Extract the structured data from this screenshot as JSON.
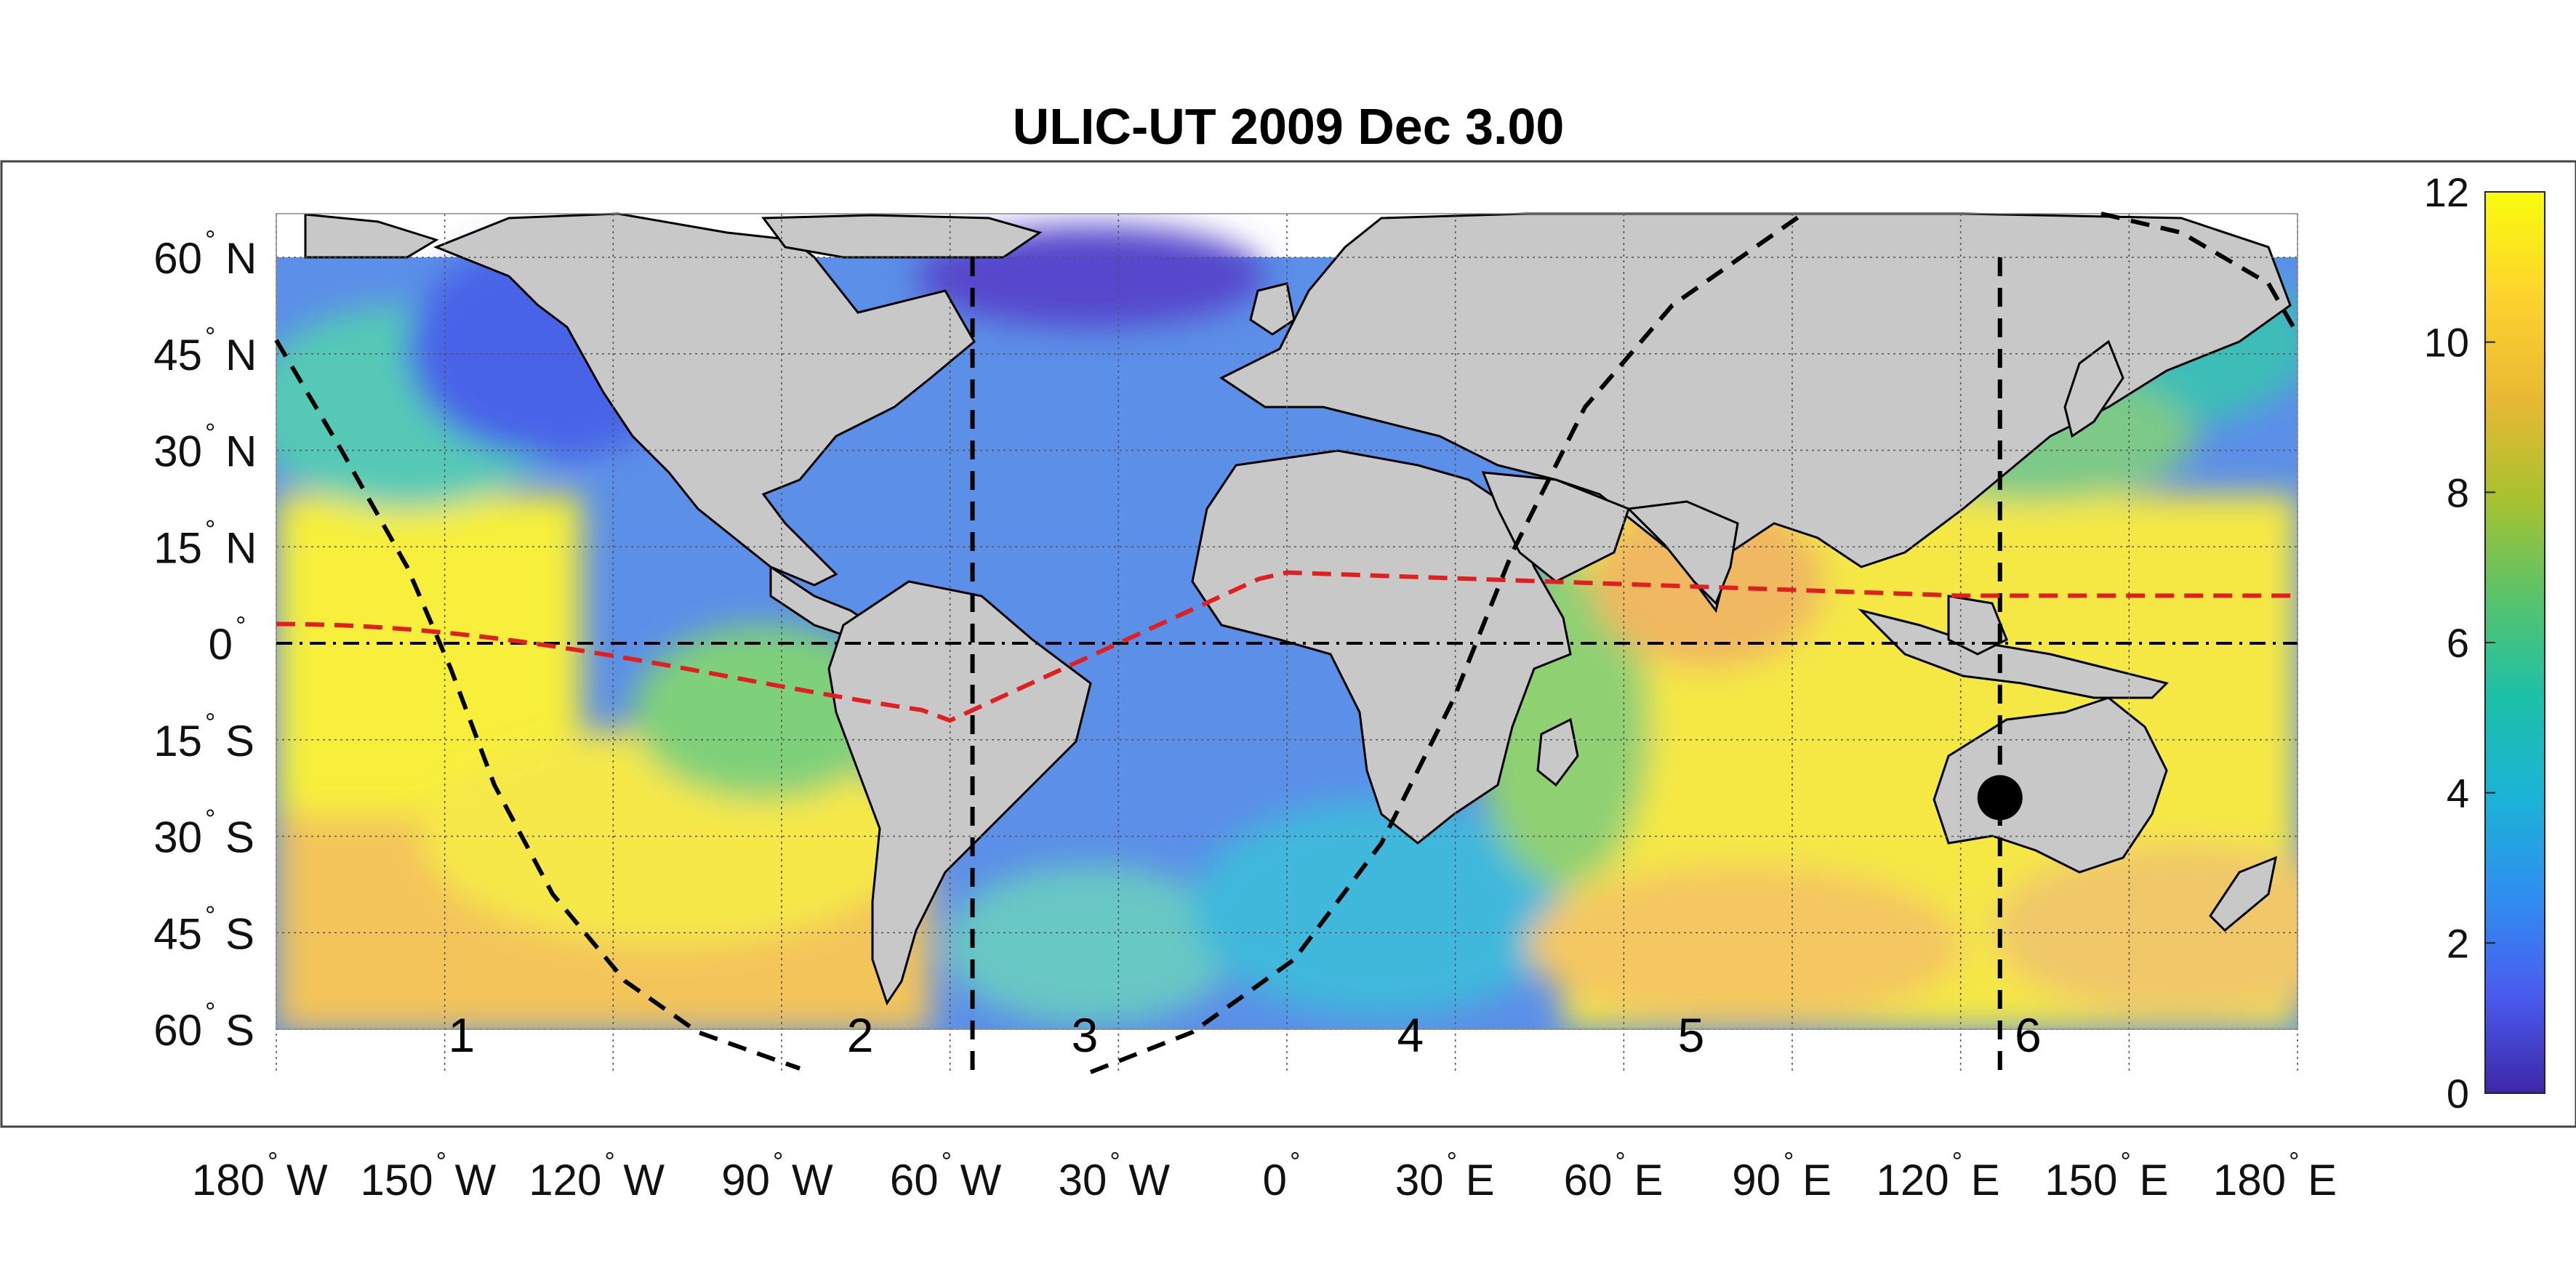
{
  "title": "ULIC-UT 2009 Dec  3.00",
  "degree_symbol": "°",
  "lat_labels": [
    {
      "value": 60,
      "num": "60",
      "hemi": "N"
    },
    {
      "value": 45,
      "num": "45",
      "hemi": "N"
    },
    {
      "value": 30,
      "num": "30",
      "hemi": "N"
    },
    {
      "value": 15,
      "num": "15",
      "hemi": "N"
    },
    {
      "value": 0,
      "num": "0",
      "hemi": ""
    },
    {
      "value": -15,
      "num": "15",
      "hemi": "S"
    },
    {
      "value": -30,
      "num": "30",
      "hemi": "S"
    },
    {
      "value": -45,
      "num": "45",
      "hemi": "S"
    },
    {
      "value": -60,
      "num": "60",
      "hemi": "S"
    }
  ],
  "lon_labels": [
    {
      "value": -180,
      "num": "180",
      "hemi": "W"
    },
    {
      "value": -150,
      "num": "150",
      "hemi": "W"
    },
    {
      "value": -120,
      "num": "120",
      "hemi": "W"
    },
    {
      "value": -90,
      "num": "90",
      "hemi": "W"
    },
    {
      "value": -60,
      "num": "60",
      "hemi": "W"
    },
    {
      "value": -30,
      "num": "30",
      "hemi": "W"
    },
    {
      "value": 0,
      "num": "0",
      "hemi": ""
    },
    {
      "value": 30,
      "num": "30",
      "hemi": "E"
    },
    {
      "value": 60,
      "num": "60",
      "hemi": "E"
    },
    {
      "value": 90,
      "num": "90",
      "hemi": "E"
    },
    {
      "value": 120,
      "num": "120",
      "hemi": "E"
    },
    {
      "value": 150,
      "num": "150",
      "hemi": "E"
    },
    {
      "value": 180,
      "num": "180",
      "hemi": "E"
    }
  ],
  "region_labels": [
    {
      "text": "1",
      "lon": -147
    },
    {
      "text": "2",
      "lon": -76
    },
    {
      "text": "3",
      "lon": -36
    },
    {
      "text": "4",
      "lon": 22
    },
    {
      "text": "5",
      "lon": 72
    },
    {
      "text": "6",
      "lon": 132
    }
  ],
  "sector_boundaries_lon": [
    -56,
    127
  ],
  "observer_marker": {
    "lon": 127,
    "lat": -24
  },
  "colorbar": {
    "min": 0,
    "max": 12,
    "ticks": [
      {
        "value": 0,
        "label": "0"
      },
      {
        "value": 2,
        "label": "2"
      },
      {
        "value": 4,
        "label": "4"
      },
      {
        "value": 6,
        "label": "6"
      },
      {
        "value": 8,
        "label": "8"
      },
      {
        "value": 10,
        "label": "10"
      },
      {
        "value": 12,
        "label": "12"
      }
    ],
    "colormap": [
      "#3e26a8",
      "#4a5cf0",
      "#2f8ff0",
      "#1bb3d6",
      "#1dc0a9",
      "#59c36b",
      "#a9c12f",
      "#e8b833",
      "#fdd22f",
      "#f9fb0e"
    ]
  },
  "colors": {
    "land": "#c8c8c8",
    "equator_dip_line": "#e02020",
    "terminator_line": "#000000",
    "marker": "#000000"
  }
}
